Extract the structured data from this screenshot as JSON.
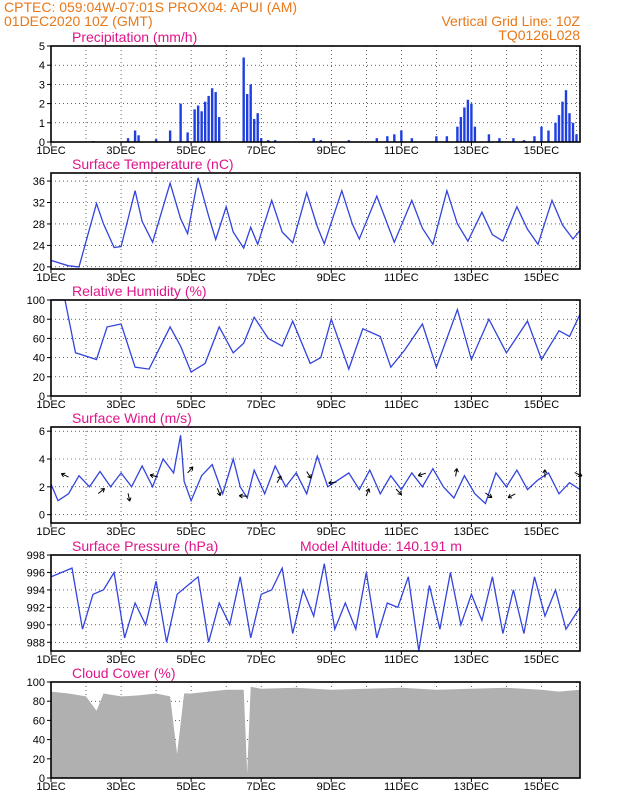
{
  "header": {
    "line1": "CPTEC:   059:04W-07:01S   PROX04: APUI (AM)",
    "line2_left": "01DEC2020 10Z (GMT)",
    "line2_right": "Vertical Grid Line: 10Z",
    "line3_right": "TQ0126L028"
  },
  "colors": {
    "header": "#e87818",
    "panel_title": "#e0158a",
    "series": "#3344dd",
    "bars": "#1f3fe0",
    "cloud": "#b0b0b0"
  },
  "x_axis": {
    "start_day": 1,
    "end_day": 16.1,
    "tick_days": [
      1,
      3,
      5,
      7,
      9,
      11,
      13,
      15
    ],
    "tick_labels": [
      "1DEC",
      "3DEC",
      "5DEC",
      "7DEC",
      "9DEC",
      "11DEC",
      "13DEC",
      "15DEC"
    ],
    "grid_days": [
      2,
      3,
      4,
      5,
      6,
      7,
      8,
      9,
      10,
      11,
      12,
      13,
      14,
      15,
      16
    ]
  },
  "chart_data": [
    {
      "type": "bar",
      "title": "Precipitation (mm/h)",
      "ylim": [
        0,
        5
      ],
      "yticks": [
        "0",
        "1",
        "2",
        "3",
        "4",
        "5"
      ],
      "x": [
        2.2,
        3.2,
        3.4,
        3.5,
        4.0,
        4.4,
        4.7,
        4.9,
        5.1,
        5.2,
        5.3,
        5.4,
        5.5,
        5.6,
        5.7,
        5.8,
        6.5,
        6.6,
        6.7,
        6.8,
        6.9,
        7.0,
        7.2,
        7.4,
        8.5,
        8.7,
        9.5,
        10.3,
        10.6,
        10.8,
        11.0,
        11.3,
        12.0,
        12.3,
        12.6,
        12.7,
        12.8,
        12.9,
        13.0,
        13.1,
        13.5,
        13.8,
        14.2,
        14.5,
        14.8,
        15.0,
        15.2,
        15.4,
        15.5,
        15.6,
        15.7,
        15.8,
        15.9,
        16.0
      ],
      "values": [
        0.05,
        0.2,
        0.6,
        0.35,
        0.15,
        0.6,
        2.0,
        0.5,
        1.7,
        1.9,
        1.6,
        2.1,
        2.4,
        2.8,
        2.6,
        1.3,
        4.4,
        2.5,
        3.0,
        1.2,
        1.5,
        0.2,
        0.1,
        0.1,
        0.2,
        0.1,
        0.1,
        0.2,
        0.3,
        0.4,
        0.6,
        0.2,
        0.3,
        0.3,
        0.8,
        1.3,
        1.8,
        2.2,
        2.0,
        0.8,
        0.4,
        0.2,
        0.2,
        0.1,
        0.3,
        0.8,
        0.6,
        1.0,
        1.4,
        2.1,
        2.7,
        1.5,
        1.0,
        0.4
      ]
    },
    {
      "type": "line",
      "title": "Surface Temperature (nC)",
      "ylim": [
        19.6,
        37.5
      ],
      "yticks": [
        20,
        24,
        28,
        32,
        36
      ],
      "x": [
        1.0,
        1.5,
        1.8,
        2.3,
        2.5,
        2.8,
        3.0,
        3.4,
        3.6,
        3.9,
        4.4,
        4.7,
        4.9,
        5.2,
        5.5,
        5.7,
        6.0,
        6.2,
        6.5,
        6.7,
        6.9,
        7.3,
        7.6,
        7.9,
        8.3,
        8.6,
        8.8,
        9.3,
        9.6,
        9.8,
        10.3,
        10.6,
        10.8,
        11.3,
        11.6,
        11.9,
        12.3,
        12.6,
        12.9,
        13.3,
        13.6,
        13.9,
        14.3,
        14.6,
        14.9,
        15.3,
        15.6,
        15.9,
        16.1
      ],
      "values": [
        21.2,
        20.2,
        20.0,
        31.8,
        28.0,
        23.6,
        23.8,
        34.2,
        28.5,
        24.6,
        35.6,
        29.0,
        26.2,
        36.6,
        29.5,
        25.1,
        31.2,
        26.5,
        23.5,
        27.4,
        24.2,
        32.4,
        26.5,
        24.5,
        33.8,
        27.5,
        24.3,
        34.2,
        28.0,
        25.2,
        33.2,
        28.0,
        24.6,
        32.4,
        27.2,
        24.2,
        34.2,
        28.0,
        24.8,
        30.2,
        26.0,
        24.8,
        31.2,
        27.0,
        24.2,
        32.4,
        27.8,
        25.2,
        26.8
      ]
    },
    {
      "type": "line",
      "title": "Relative Humidity (%)",
      "ylim": [
        0,
        100
      ],
      "yticks": [
        0,
        20,
        40,
        60,
        80,
        100
      ],
      "x": [
        1.0,
        1.4,
        1.7,
        2.3,
        2.6,
        3.0,
        3.4,
        3.8,
        4.4,
        4.7,
        5.0,
        5.4,
        5.8,
        6.2,
        6.5,
        6.8,
        7.2,
        7.6,
        7.9,
        8.4,
        8.7,
        9.0,
        9.5,
        9.9,
        10.4,
        10.7,
        11.1,
        11.6,
        12.0,
        12.6,
        13.0,
        13.5,
        14.0,
        14.6,
        15.0,
        15.5,
        15.8,
        16.1
      ],
      "values": [
        100,
        100,
        45,
        38,
        72,
        75,
        30,
        28,
        72,
        52,
        25,
        34,
        72,
        45,
        55,
        82,
        60,
        52,
        78,
        34,
        40,
        80,
        28,
        70,
        62,
        30,
        48,
        75,
        30,
        90,
        38,
        80,
        45,
        78,
        38,
        68,
        62,
        85
      ]
    },
    {
      "type": "line",
      "title": "Surface Wind (m/s)",
      "ylim": [
        -0.6,
        6.3
      ],
      "yticks": [
        0,
        2,
        4,
        6
      ],
      "x": [
        1.0,
        1.2,
        1.5,
        1.8,
        2.1,
        2.4,
        2.7,
        3.0,
        3.3,
        3.6,
        3.9,
        4.2,
        4.5,
        4.7,
        4.8,
        5.0,
        5.3,
        5.6,
        5.9,
        6.2,
        6.4,
        6.6,
        6.8,
        7.1,
        7.4,
        7.7,
        8.0,
        8.3,
        8.6,
        8.9,
        9.2,
        9.5,
        9.8,
        10.1,
        10.4,
        10.7,
        11.0,
        11.3,
        11.6,
        11.9,
        12.2,
        12.5,
        12.8,
        13.1,
        13.4,
        13.7,
        14.0,
        14.3,
        14.6,
        14.9,
        15.2,
        15.5,
        15.8,
        16.1
      ],
      "values": [
        2.2,
        1.0,
        1.5,
        2.8,
        2.0,
        3.1,
        2.0,
        3.0,
        2.0,
        3.5,
        2.0,
        4.0,
        3.0,
        5.7,
        2.4,
        1.0,
        2.8,
        3.6,
        1.5,
        4.0,
        2.0,
        1.2,
        3.2,
        1.5,
        3.5,
        2.0,
        3.0,
        1.5,
        4.2,
        2.0,
        2.5,
        3.0,
        1.8,
        3.2,
        1.5,
        2.8,
        1.8,
        3.0,
        2.0,
        3.3,
        2.0,
        1.2,
        2.8,
        1.5,
        0.8,
        3.0,
        2.0,
        3.2,
        1.8,
        2.5,
        3.0,
        1.5,
        2.3,
        1.8
      ]
    },
    {
      "type": "line",
      "title": "Surface Pressure (hPa)",
      "annotation": "Model Altitude: 140.191 m",
      "ylim": [
        987,
        998
      ],
      "yticks": [
        988,
        990,
        992,
        994,
        996,
        998
      ],
      "x": [
        1.0,
        1.3,
        1.6,
        1.9,
        2.2,
        2.5,
        2.8,
        3.1,
        3.4,
        3.7,
        4.0,
        4.3,
        4.6,
        4.9,
        5.2,
        5.5,
        5.8,
        6.1,
        6.4,
        6.7,
        7.0,
        7.3,
        7.6,
        7.9,
        8.2,
        8.5,
        8.8,
        9.1,
        9.4,
        9.7,
        10.0,
        10.3,
        10.6,
        10.9,
        11.2,
        11.5,
        11.8,
        12.1,
        12.4,
        12.7,
        13.0,
        13.3,
        13.6,
        13.9,
        14.2,
        14.5,
        14.8,
        15.1,
        15.4,
        15.7,
        16.1
      ],
      "values": [
        995.5,
        996.0,
        996.5,
        989.5,
        993.5,
        994.0,
        996.0,
        988.5,
        992.5,
        990.0,
        995.0,
        988.0,
        993.5,
        994.5,
        995.5,
        988.0,
        992.5,
        990.0,
        995.5,
        988.5,
        993.5,
        994.0,
        996.5,
        989.0,
        994.0,
        991.0,
        997.0,
        989.5,
        992.5,
        989.5,
        996.0,
        988.5,
        992.5,
        992.0,
        995.5,
        987.0,
        994.5,
        989.5,
        996.0,
        990.0,
        993.5,
        990.5,
        995.5,
        989.0,
        994.0,
        989.0,
        995.5,
        991.0,
        994.0,
        989.5,
        992.0
      ]
    },
    {
      "type": "area",
      "title": "Cloud Cover (%)",
      "ylim": [
        0,
        100
      ],
      "yticks": [
        0,
        20,
        40,
        60,
        80,
        100
      ],
      "x": [
        1.0,
        1.5,
        2.0,
        2.3,
        2.5,
        3.0,
        3.5,
        4.0,
        4.4,
        4.6,
        4.8,
        5.0,
        5.5,
        6.0,
        6.5,
        6.6,
        6.7,
        7.0,
        8.0,
        9.0,
        10.0,
        11.0,
        12.0,
        13.0,
        14.0,
        15.0,
        15.5,
        16.1
      ],
      "values": [
        90,
        88,
        85,
        70,
        88,
        85,
        86,
        88,
        85,
        25,
        88,
        88,
        90,
        92,
        92,
        5,
        95,
        93,
        94,
        92,
        93,
        94,
        92,
        93,
        94,
        92,
        90,
        92
      ]
    }
  ]
}
